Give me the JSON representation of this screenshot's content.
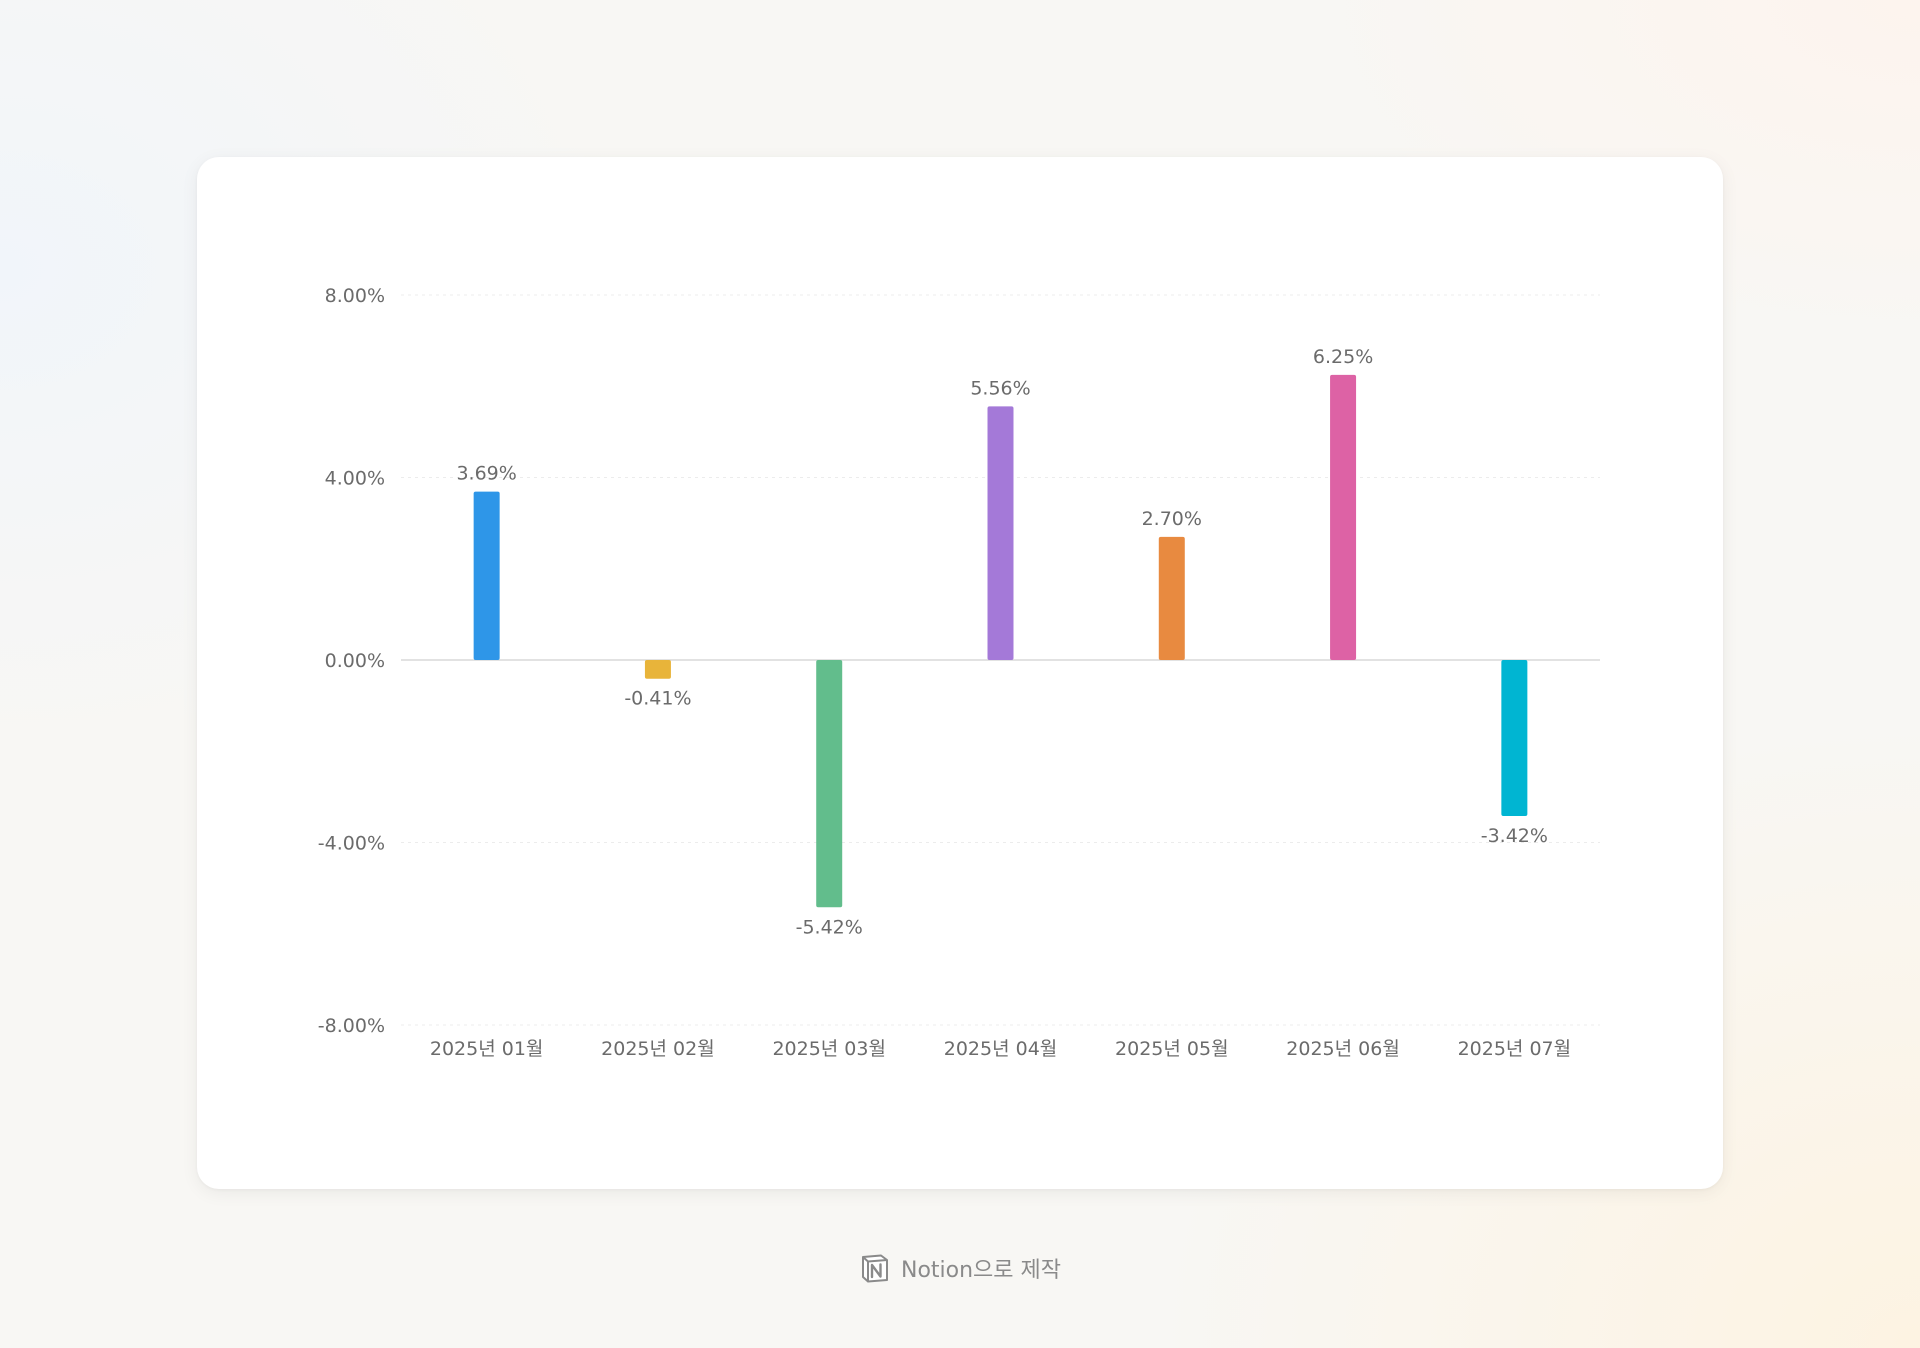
{
  "chart_data": {
    "type": "bar",
    "categories": [
      "2025년 01월",
      "2025년 02월",
      "2025년 03월",
      "2025년 04월",
      "2025년 05월",
      "2025년 06월",
      "2025년 07월"
    ],
    "values": [
      3.69,
      -0.41,
      -5.42,
      5.56,
      2.7,
      6.25,
      -3.42
    ],
    "data_labels": [
      "3.69%",
      "-0.41%",
      "-5.42%",
      "5.56%",
      "2.70%",
      "6.25%",
      "-3.42%"
    ],
    "colors": [
      "#2e96e8",
      "#e8b43a",
      "#62bd8c",
      "#a479d8",
      "#e88a40",
      "#dd62a5",
      "#00b5d2"
    ],
    "yticks": [
      8,
      4,
      0,
      -4,
      -8
    ],
    "ytick_labels": [
      "8.00%",
      "4.00%",
      "0.00%",
      "-4.00%",
      "-8.00%"
    ],
    "ylim": [
      -8,
      8
    ],
    "grid": true
  },
  "footer": {
    "logo_icon": "notion-logo-icon",
    "text": "Notion으로 제작"
  }
}
